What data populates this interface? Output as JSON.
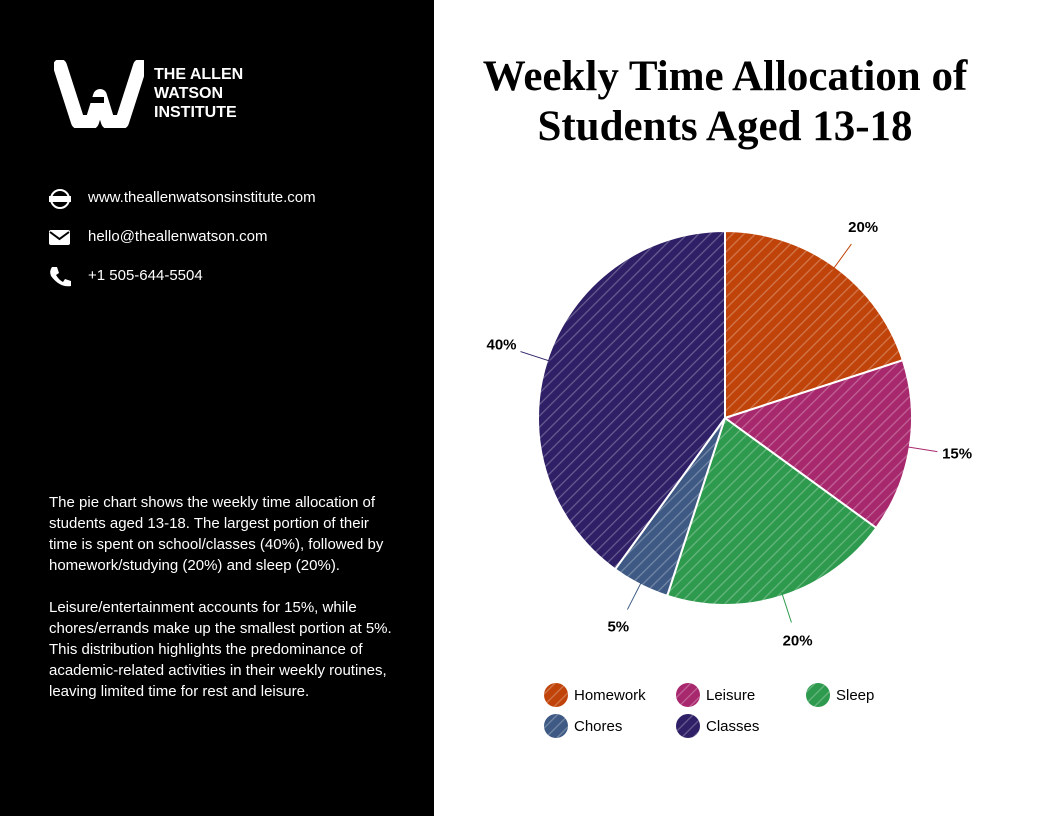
{
  "sidebar": {
    "brand": [
      "THE ALLEN",
      "WATSON",
      "INSTITUTE"
    ],
    "contacts": [
      "www.theallenwatsonsinstitute.com",
      "hello@theallenwatson.com",
      "+1 505-644-5504"
    ],
    "description": [
      "The pie chart shows the weekly time allocation of students aged 13-18. The largest portion of their time is spent on school/classes (40%), followed by homework/studying (20%) and sleep (20%).",
      "Leisure/entertainment accounts for 15%, while chores/errands make up the smallest portion at 5%. This distribution highlights the predominance of academic-related activities in their weekly routines, leaving limited time for rest and leisure."
    ]
  },
  "chart_data": {
    "type": "pie",
    "title": "Weekly Time Allocation of Students Aged 13-18",
    "categories": [
      "Homework",
      "Leisure",
      "Sleep",
      "Chores",
      "Classes"
    ],
    "values": [
      20,
      15,
      20,
      5,
      40
    ],
    "value_labels": [
      "20%",
      "15%",
      "20%",
      "5%",
      "40%"
    ],
    "colors": [
      "#c0440a",
      "#a8286e",
      "#2e9a4e",
      "#3e5a84",
      "#2e1f66"
    ]
  }
}
